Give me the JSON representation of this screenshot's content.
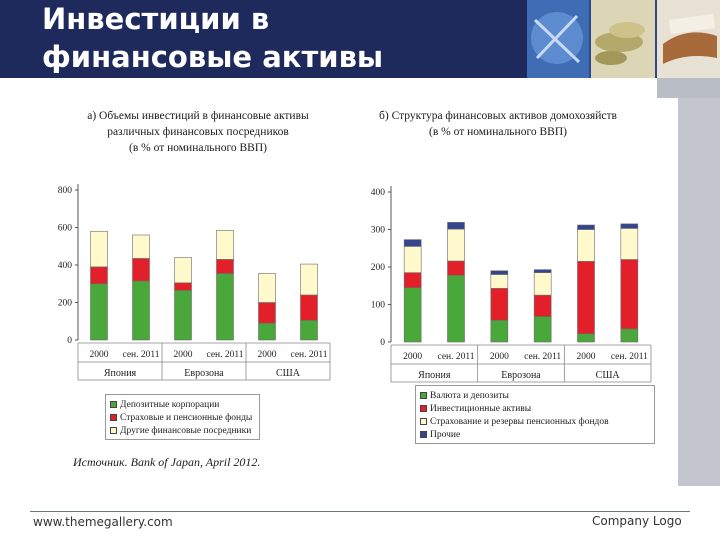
{
  "slide": {
    "title_line1": "Инвестиции в",
    "title_line2": "финансовые активы"
  },
  "footer": {
    "website": "www.themegallery.com",
    "logo_text": "Company Logo"
  },
  "source_note": "Источник. Bank of Japan, April 2012.",
  "colors": {
    "green": "#4aa83a",
    "red": "#e3202a",
    "cream": "#fff9cc",
    "navy": "#34448f",
    "header": "#1f2a5c"
  },
  "chart_data": [
    {
      "type": "bar",
      "stacked": true,
      "title_lines": [
        "а) Объемы инвестиций в финансовые активы",
        "различных финансовых посредников",
        "(в % от номинального ВВП)"
      ],
      "categories": [
        "2000",
        "сен. 2011",
        "2000",
        "сен. 2011",
        "2000",
        "сен. 2011"
      ],
      "groups": [
        {
          "label": "Япония",
          "span": 2
        },
        {
          "label": "Еврозона",
          "span": 2
        },
        {
          "label": "США",
          "span": 2
        }
      ],
      "series": [
        {
          "name": "Депозитные корпорации",
          "color": "#4aa83a",
          "values": [
            300,
            315,
            265,
            355,
            90,
            105
          ]
        },
        {
          "name": "Страховые и пенсионные фонды",
          "color": "#e3202a",
          "values": [
            90,
            120,
            40,
            75,
            110,
            135
          ]
        },
        {
          "name": "Другие финансовые посредники",
          "color": "#fff9cc",
          "values": [
            190,
            125,
            135,
            155,
            155,
            165
          ]
        }
      ],
      "yticks": [
        0,
        200,
        400,
        600,
        800
      ],
      "ylim": [
        0,
        800
      ]
    },
    {
      "type": "bar",
      "stacked": true,
      "title_lines": [
        "б) Структура финансовых активов домохозяйств",
        "(в % от номинального ВВП)"
      ],
      "categories": [
        "2000",
        "сен. 2011",
        "2000",
        "сен. 2011",
        "2000",
        "сен. 2011"
      ],
      "groups": [
        {
          "label": "Япония",
          "span": 2
        },
        {
          "label": "Еврозона",
          "span": 2
        },
        {
          "label": "США",
          "span": 2
        }
      ],
      "series": [
        {
          "name": "Валюта и депозиты",
          "color": "#4aa83a",
          "values": [
            145,
            178,
            58,
            68,
            22,
            35
          ]
        },
        {
          "name": "Инвестиционные активы",
          "color": "#e3202a",
          "values": [
            40,
            38,
            85,
            57,
            193,
            185
          ]
        },
        {
          "name": "Страхование и резервы пенсионных фондов",
          "color": "#fff9cc",
          "values": [
            70,
            85,
            37,
            60,
            85,
            83
          ]
        },
        {
          "name": "Прочие",
          "color": "#34448f",
          "values": [
            18,
            18,
            10,
            8,
            12,
            12
          ]
        }
      ],
      "yticks": [
        0,
        100,
        200,
        300,
        400
      ],
      "ylim": [
        0,
        400
      ]
    }
  ]
}
